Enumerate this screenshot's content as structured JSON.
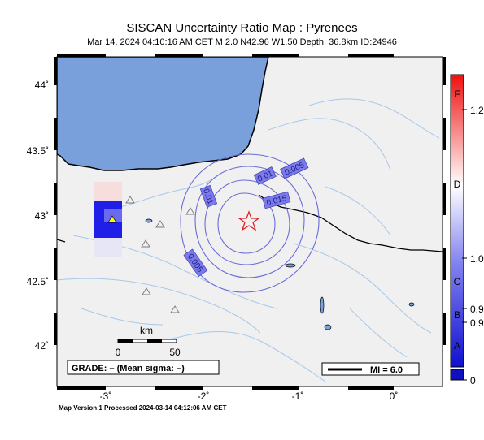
{
  "title": "SISCAN Uncertainty Ratio Map : Pyrenees",
  "subtitle": "Mar 14, 2024 04:10:16 AM CET   M 2.0   N42.96 W1.50   Depth: 36.8km   ID:24946",
  "footer": "Map Version 1 Processed 2024-03-14 04:12:06 AM CET",
  "axes": {
    "lon_ticks": [
      "-3˚",
      "-2˚",
      "-1˚",
      "0˚"
    ],
    "lat_ticks": [
      "44˚",
      "43.5˚",
      "43˚",
      "42.5˚",
      "42˚"
    ]
  },
  "contours": {
    "labels": [
      "0.005",
      "0.01",
      "0.015",
      "0.01",
      "0.005"
    ]
  },
  "scale_bar": {
    "unit": "km",
    "min": "0",
    "max": "50"
  },
  "grade_box": "GRADE: – (Mean sigma: –)",
  "mi_legend": "MI = 6.0",
  "colorbar": {
    "letters": [
      "F",
      "D",
      "C",
      "B",
      "A"
    ],
    "values": [
      "1.2",
      "1.0",
      "0.9",
      "0.9",
      "0"
    ]
  },
  "colors": {
    "sea": "#7aa0dc",
    "land": "#f0f0f0",
    "river": "#a8c8ea",
    "contour": "#6b6bd8",
    "epicenter": "#e02020",
    "station": "#ffff00"
  }
}
